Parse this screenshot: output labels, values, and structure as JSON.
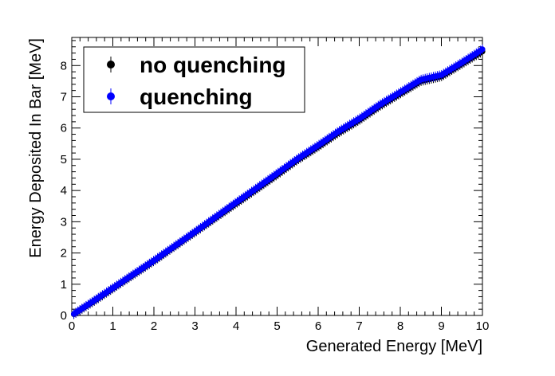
{
  "chart_data": {
    "type": "scatter",
    "title": "",
    "xlabel": "Generated Energy [MeV]",
    "ylabel": "Energy Deposited In Bar [MeV]",
    "xlim": [
      0,
      10
    ],
    "ylim": [
      0,
      8.9
    ],
    "x_ticks": [
      "0",
      "1",
      "2",
      "3",
      "4",
      "5",
      "6",
      "7",
      "8",
      "9",
      "10"
    ],
    "y_ticks": [
      "0",
      "1",
      "2",
      "3",
      "4",
      "5",
      "6",
      "7",
      "8"
    ],
    "grid": false,
    "legend_position": "top-left",
    "series": [
      {
        "name": "no quenching",
        "color": "#000000",
        "x": [
          0.05,
          0.5,
          1.0,
          1.5,
          2.0,
          2.5,
          3.0,
          3.5,
          4.0,
          4.5,
          5.0,
          5.5,
          6.0,
          6.5,
          7.0,
          7.5,
          8.0,
          8.5,
          9.0,
          9.5,
          10.0
        ],
        "y": [
          0.04,
          0.42,
          0.86,
          1.3,
          1.74,
          2.2,
          2.66,
          3.12,
          3.58,
          4.04,
          4.5,
          4.98,
          5.4,
          5.85,
          6.25,
          6.7,
          7.1,
          7.5,
          7.65,
          8.05,
          8.45
        ]
      },
      {
        "name": "quenching",
        "color": "#0000ff",
        "x": [
          0.05,
          0.5,
          1.0,
          1.5,
          2.0,
          2.5,
          3.0,
          3.5,
          4.0,
          4.5,
          5.0,
          5.5,
          6.0,
          6.5,
          7.0,
          7.5,
          8.0,
          8.5,
          9.0,
          9.5,
          10.0
        ],
        "y": [
          0.05,
          0.44,
          0.88,
          1.32,
          1.76,
          2.22,
          2.68,
          3.15,
          3.62,
          4.08,
          4.55,
          5.02,
          5.45,
          5.9,
          6.3,
          6.75,
          7.15,
          7.55,
          7.7,
          8.1,
          8.52
        ]
      }
    ]
  }
}
